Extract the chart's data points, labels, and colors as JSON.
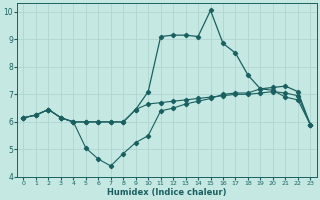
{
  "xlabel": "Humidex (Indice chaleur)",
  "xlim": [
    -0.5,
    23.5
  ],
  "ylim": [
    4,
    10.3
  ],
  "yticks": [
    4,
    5,
    6,
    7,
    8,
    9,
    10
  ],
  "xticks": [
    0,
    1,
    2,
    3,
    4,
    5,
    6,
    7,
    8,
    9,
    10,
    11,
    12,
    13,
    14,
    15,
    16,
    17,
    18,
    19,
    20,
    21,
    22,
    23
  ],
  "xtick_labels": [
    "0",
    "1",
    "2",
    "3",
    "4",
    "5",
    "6",
    "7",
    "8",
    "9",
    "10",
    "11",
    "12",
    "13",
    "14",
    "15",
    "16",
    "17",
    "18",
    "19",
    "20",
    "21",
    "22",
    "23"
  ],
  "bg_color": "#c5e8e3",
  "grid_color": "#b0d4cf",
  "line_color": "#1a6060",
  "line_spike_x": [
    0,
    1,
    2,
    3,
    4,
    5,
    6,
    7,
    8,
    9,
    10,
    11,
    12,
    13,
    14,
    15,
    16,
    17,
    18,
    19,
    20,
    21,
    22,
    23
  ],
  "line_spike_y": [
    6.15,
    6.25,
    6.45,
    6.15,
    6.0,
    6.0,
    6.0,
    6.0,
    6.0,
    6.45,
    7.1,
    9.1,
    9.15,
    9.15,
    9.1,
    10.05,
    8.85,
    8.5,
    7.7,
    7.2,
    7.25,
    7.3,
    7.1,
    5.9
  ],
  "line_upper_x": [
    0,
    1,
    2,
    3,
    4,
    5,
    6,
    7,
    8,
    9,
    10,
    11,
    12,
    13,
    14,
    15,
    16,
    17,
    18,
    19,
    20,
    21,
    22,
    23
  ],
  "line_upper_y": [
    6.15,
    6.25,
    6.45,
    6.15,
    6.0,
    6.0,
    6.0,
    6.0,
    6.0,
    6.45,
    6.65,
    6.7,
    6.75,
    6.8,
    6.85,
    6.9,
    6.95,
    7.0,
    7.0,
    7.05,
    7.1,
    7.05,
    6.95,
    5.9
  ],
  "line_lower_x": [
    0,
    1,
    2,
    3,
    4,
    5,
    6,
    7,
    8,
    9,
    10,
    11,
    12,
    13,
    14,
    15,
    16,
    17,
    18,
    19,
    20,
    21,
    22,
    23
  ],
  "line_lower_y": [
    6.15,
    6.25,
    6.45,
    6.15,
    6.0,
    5.05,
    4.65,
    4.4,
    4.85,
    5.25,
    5.5,
    6.4,
    6.5,
    6.65,
    6.75,
    6.85,
    7.0,
    7.05,
    7.05,
    7.2,
    7.15,
    6.9,
    6.8,
    5.9
  ]
}
